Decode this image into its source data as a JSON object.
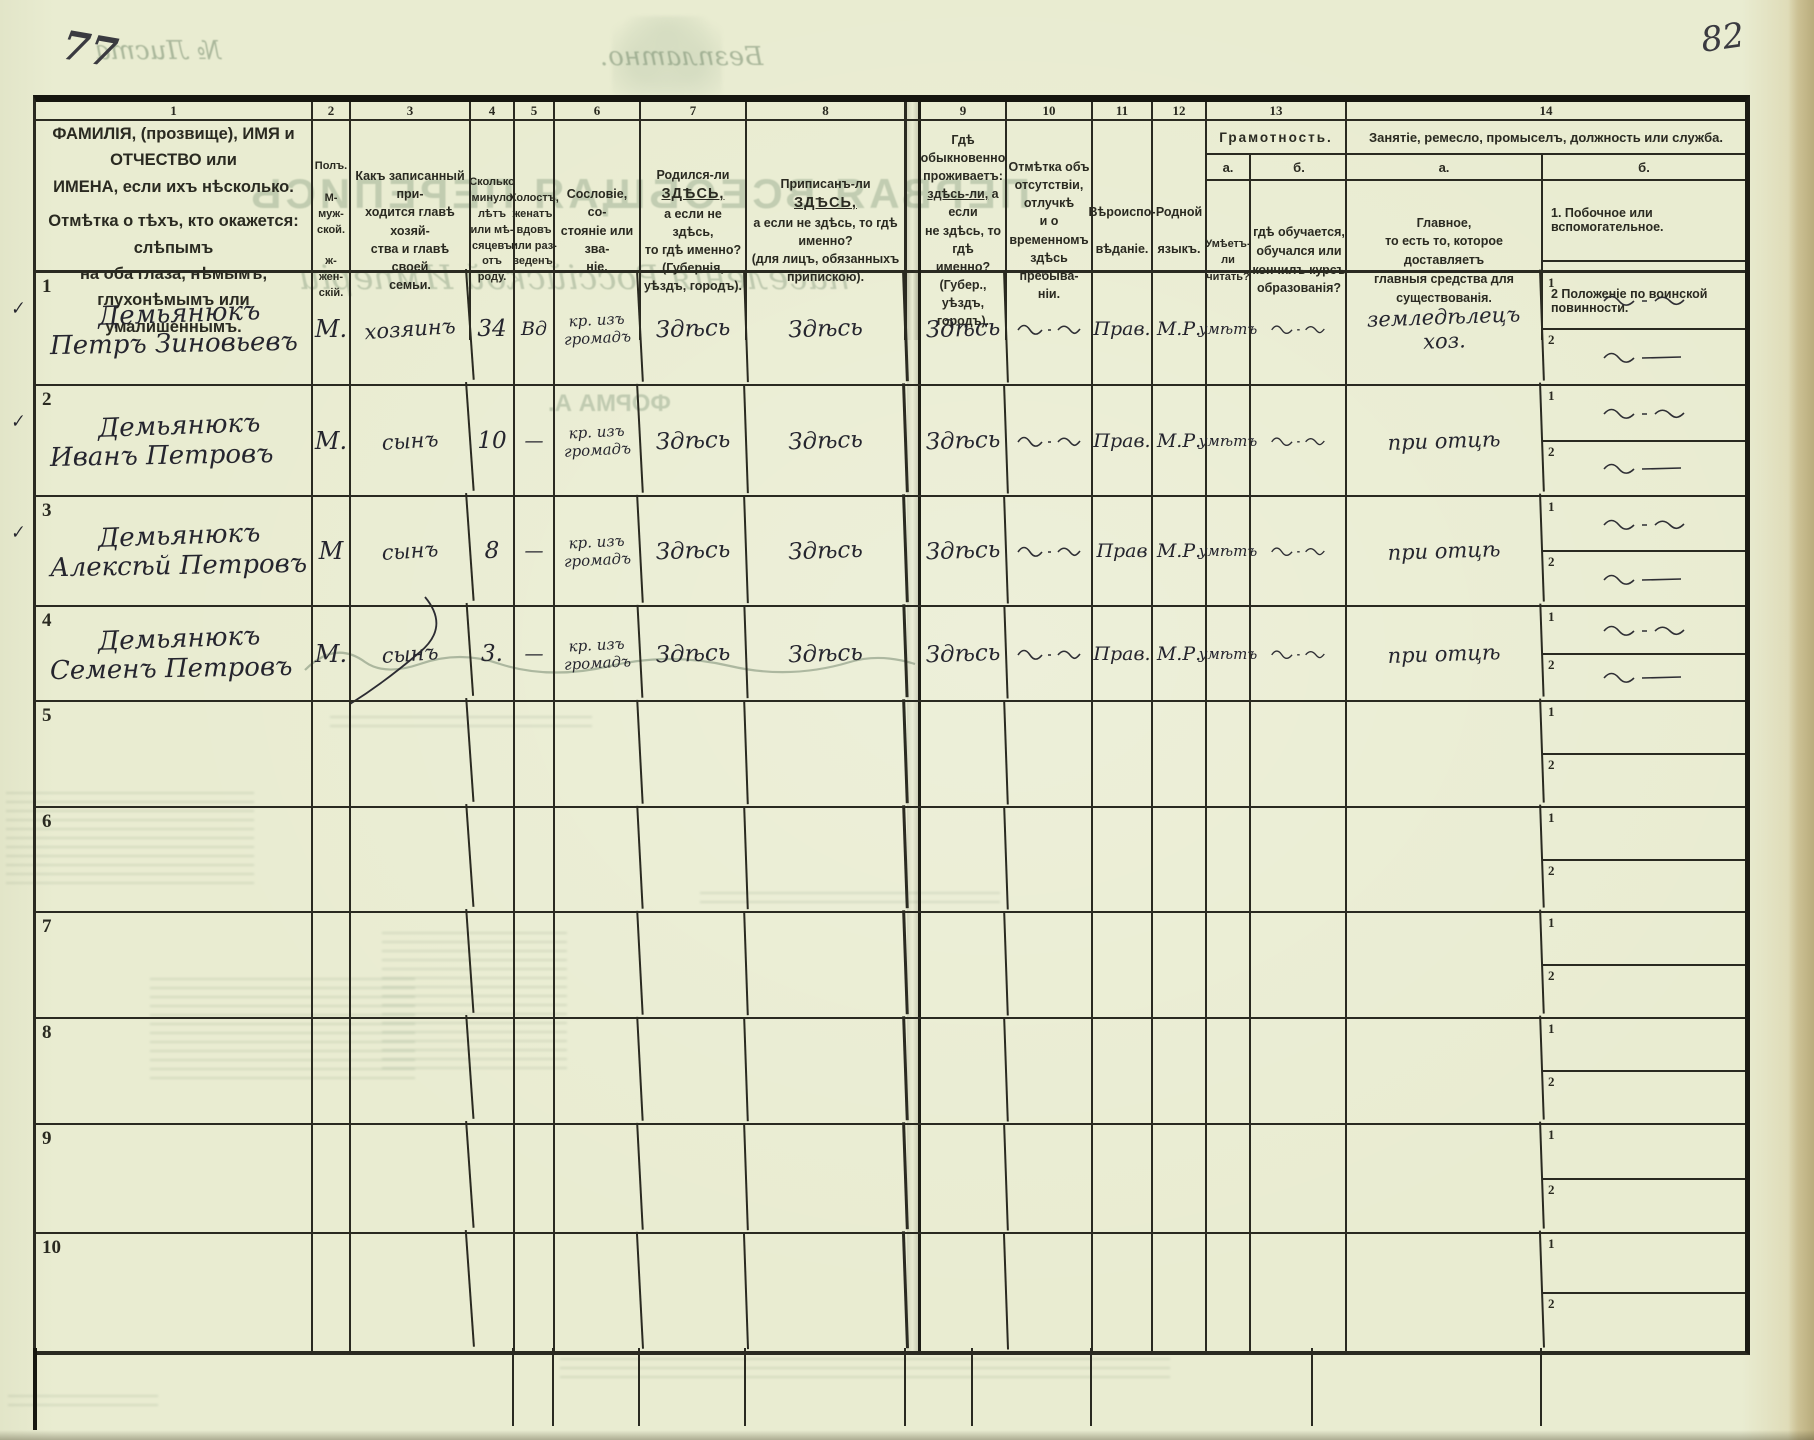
{
  "page": {
    "corner_number": "82",
    "sheet_number": "77"
  },
  "bleed": {
    "free_label": "Безплатно.",
    "sheet_label": "№ Листа",
    "title": "ПЕРВАЯ ВСЕОБЩАЯ ПЕРЕПИСЬ",
    "subtitle": "населенія Россійской Имперіи",
    "forma": "ФОРМА А."
  },
  "table": {
    "sub1": "1",
    "sub2": "2",
    "numbers": {
      "n1": "1",
      "n2": "2",
      "n3": "3",
      "n4": "4",
      "n5": "5",
      "n6": "6",
      "n7": "7",
      "n8": "8",
      "n9": "9",
      "n10": "10",
      "n11": "11",
      "n12": "12",
      "n13": "13",
      "n14": "14"
    }
  },
  "header": {
    "c1": {
      "p1": "ФАМИЛІЯ, (прозвище), ИМЯ и ОТЧЕСТВО или\nИМЕНА, если ихъ нѣсколько.",
      "p2": "Отмѣтка о тѣхъ, кто окажется: слѣпымъ\nна оба глаза, нѣмымъ, глухонѣмымъ или\nумалишеннымъ."
    },
    "c2": {
      "text": "Полъ.\n\nМ-муж-\nской.\n\nж-жен-\nскій."
    },
    "c3": {
      "text": "Какъ записанный при-\nходится главѣ хозяй-\nства и главѣ своей\nсемьи."
    },
    "c4": {
      "text": "Сколько\nминуло\nлѣтъ\nили мѣ-\nсяцевъ\nотъ роду."
    },
    "c5": {
      "text": "Холостъ,\nженатъ,\nвдовъ\nили раз-\nведенъ."
    },
    "c6": {
      "text": "Сословіе, со-\nстояніе или зва-\nніе."
    },
    "c7": {
      "pre": "Родился-ли ",
      "u": "ЗДѢСЬ,",
      "rest": "\nа если не здѣсь,\nто гдѣ именно?\n(Губернія, уѣздъ, городъ)."
    },
    "c8": {
      "pre": "Приписанъ-ли ",
      "u": "ЗДѢСЬ,",
      "rest": "\nа если не здѣсь, то гдѣ\nименно?\n(для лицъ, обязанныхъ\nприпискою)."
    },
    "c9": {
      "pre": "Гдѣ обыкновенно\nпроживаетъ:\n",
      "u": "здѣсь-ли,",
      "rest": " а если\nне здѣсь, то гдѣ\nименно?\n(Губер., уѣздъ, городъ)."
    },
    "c10": {
      "text": "Отмѣтка объ\nотсутствіи, отлучкѣ\nи о временномъ\nздѣсь пребыва-\nніи."
    },
    "c11": {
      "text": "Вѣроиспо-\n\nвѣданіе."
    },
    "c12": {
      "text": "Родной\n\nязыкъ."
    },
    "c13": {
      "title": "Грамотность.",
      "a_label": "а.",
      "b_label": "б.",
      "a_text": "Умѣетъ-\nли\nчитать?",
      "b_text": "гдѣ обучается,\nобучался или\nкончилъ курсъ\nобразованія?"
    },
    "c14": {
      "title": "Занятіе, ремесло, промыселъ, должность или служба.",
      "a_label": "а.",
      "b_label": "б.",
      "a_text": "Главное,\nто есть то, которое доставляетъ\nглавныя средства для существованія.",
      "b1": "1.  Побочное или вспомогательное.",
      "b2": "2  Положеніе по воинской повинности."
    }
  },
  "rows": [
    {
      "num": "1",
      "check": true,
      "filled": true,
      "surname": "Демьянюкъ",
      "given": "Петръ Зиновьевъ",
      "sex": "М.",
      "relation": "хозяинъ",
      "age": "34",
      "marital": "Вд",
      "estate": "кр. изъ громадъ",
      "born": "Здѣсь",
      "registered": "Здѣсь",
      "resides": "Здѣсь",
      "religion": "Прав.",
      "language": "М.Р.",
      "literacy": "умѣтъ",
      "occupation": "земледѣлецъ хоз."
    },
    {
      "num": "2",
      "check": true,
      "filled": true,
      "surname": "Демьянюкъ",
      "given": "Иванъ Петровъ",
      "sex": "М.",
      "relation": "сынъ",
      "age": "10",
      "marital": "—",
      "estate": "кр. изъ громадъ",
      "born": "Здѣсь",
      "registered": "Здѣсь",
      "resides": "Здѣсь",
      "religion": "Прав.",
      "language": "М.Р.",
      "literacy": "умѣтъ",
      "occupation": "при отцѣ"
    },
    {
      "num": "3",
      "check": true,
      "filled": true,
      "surname": "Демьянюкъ",
      "given": "Алексѣй Петровъ",
      "sex": "М",
      "relation": "сынъ",
      "age": "8",
      "marital": "—",
      "estate": "кр. изъ громадъ",
      "born": "Здѣсь",
      "registered": "Здѣсь",
      "resides": "Здѣсь",
      "religion": "Прав",
      "language": "М.Р.",
      "literacy": "умѣтъ",
      "occupation": "при отцѣ"
    },
    {
      "num": "4",
      "check": false,
      "filled": true,
      "surname": "Демьянюкъ",
      "given": "Семенъ Петровъ",
      "sex": "М.",
      "relation": "сынъ",
      "age": "3.",
      "marital": "—",
      "estate": "кр. изъ громадъ",
      "born": "Здѣсь",
      "registered": "Здѣсь",
      "resides": "Здѣсь",
      "religion": "Прав.",
      "language": "М.Р.",
      "literacy": "умѣтъ",
      "occupation": "при отцѣ"
    },
    {
      "num": "5",
      "check": false,
      "filled": false
    },
    {
      "num": "6",
      "check": false,
      "filled": false
    },
    {
      "num": "7",
      "check": false,
      "filled": false
    },
    {
      "num": "8",
      "check": false,
      "filled": false
    },
    {
      "num": "9",
      "check": false,
      "filled": false
    },
    {
      "num": "10",
      "check": false,
      "filled": false
    }
  ]
}
